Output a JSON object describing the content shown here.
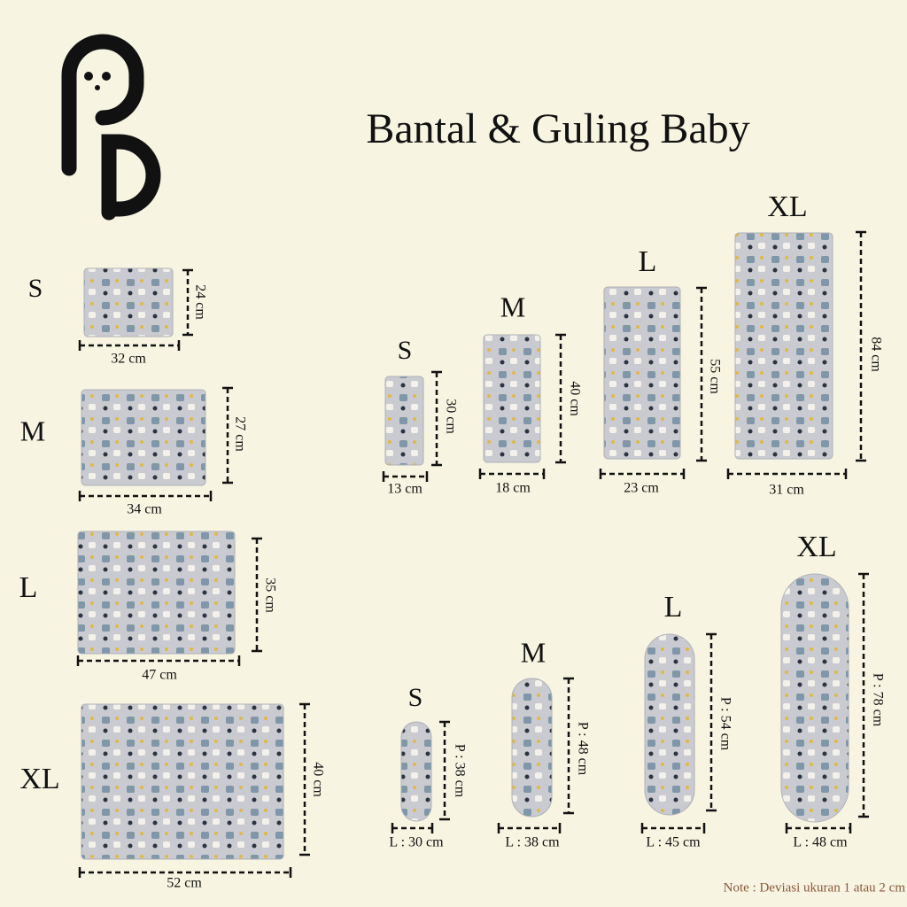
{
  "title": "Bantal & Guling Baby",
  "pillows": [
    {
      "size": "S",
      "width": "32 cm",
      "height": "24 cm"
    },
    {
      "size": "M",
      "width": "34 cm",
      "height": "27 cm"
    },
    {
      "size": "L",
      "width": "47 cm",
      "height": "35 cm"
    },
    {
      "size": "XL",
      "width": "52 cm",
      "height": "40 cm"
    }
  ],
  "tall_pillows": [
    {
      "size": "S",
      "width": "13 cm",
      "height": "30 cm"
    },
    {
      "size": "M",
      "width": "18 cm",
      "height": "40 cm"
    },
    {
      "size": "L",
      "width": "23 cm",
      "height": "55 cm"
    },
    {
      "size": "XL",
      "width": "31 cm",
      "height": "84 cm"
    }
  ],
  "bolsters": [
    {
      "size": "S",
      "width": "L : 30 cm",
      "length": "P : 38 cm"
    },
    {
      "size": "M",
      "width": "L : 38 cm",
      "length": "P : 48 cm"
    },
    {
      "size": "L",
      "width": "L : 45 cm",
      "length": "P : 54 cm"
    },
    {
      "size": "XL",
      "width": "L : 48 cm",
      "length": "P : 78 cm"
    }
  ],
  "note": "Note : Deviasi ukuran 1 atau 2 cm"
}
